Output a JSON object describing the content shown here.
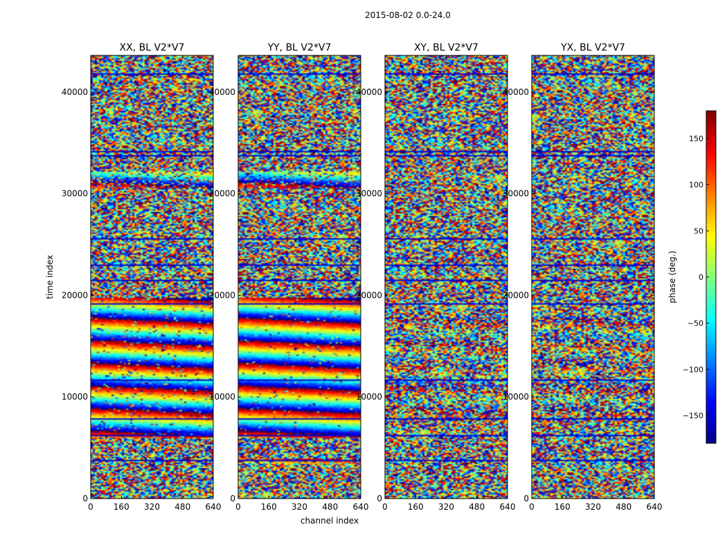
{
  "chart_data": {
    "type": "heatmap",
    "title": "2015-08-02 0.0-24.0",
    "xlabel": "channel index",
    "ylabel": "time index",
    "colorbar_label": "phase (deg.)",
    "colormap": "jet",
    "xlim": [
      0,
      640
    ],
    "ylim": [
      0,
      43600
    ],
    "clim": [
      -180,
      180
    ],
    "x_ticks": [
      0,
      160,
      320,
      480,
      640
    ],
    "y_ticks": [
      0,
      10000,
      20000,
      30000,
      40000
    ],
    "colorbar_ticks": [
      -150,
      -100,
      -50,
      0,
      50,
      100,
      150
    ],
    "panels": [
      {
        "title": "XX, BL V2*V7",
        "coherent_bands": [
          {
            "t0": 6000,
            "t1": 19800,
            "level": 0.9
          },
          {
            "t0": 30500,
            "t1": 32200,
            "level": 0.55
          }
        ]
      },
      {
        "title": "YY, BL V2*V7",
        "coherent_bands": [
          {
            "t0": 3400,
            "t1": 4000,
            "level": 0.6
          },
          {
            "t0": 6000,
            "t1": 19800,
            "level": 0.95
          },
          {
            "t0": 30500,
            "t1": 32200,
            "level": 0.7
          }
        ]
      },
      {
        "title": "XY, BL V2*V7",
        "coherent_bands": [
          {
            "t0": 8000,
            "t1": 18000,
            "level": 0.2
          }
        ]
      },
      {
        "title": "YX, BL V2*V7",
        "coherent_bands": [
          {
            "t0": 8000,
            "t1": 18000,
            "level": 0.2
          }
        ]
      }
    ],
    "flagged_time_rows": [
      3700,
      6200,
      7800,
      11700,
      19200,
      21500,
      23000,
      25500,
      27800,
      33700,
      34100,
      37200,
      41800
    ],
    "grid": false,
    "legend": "none"
  }
}
